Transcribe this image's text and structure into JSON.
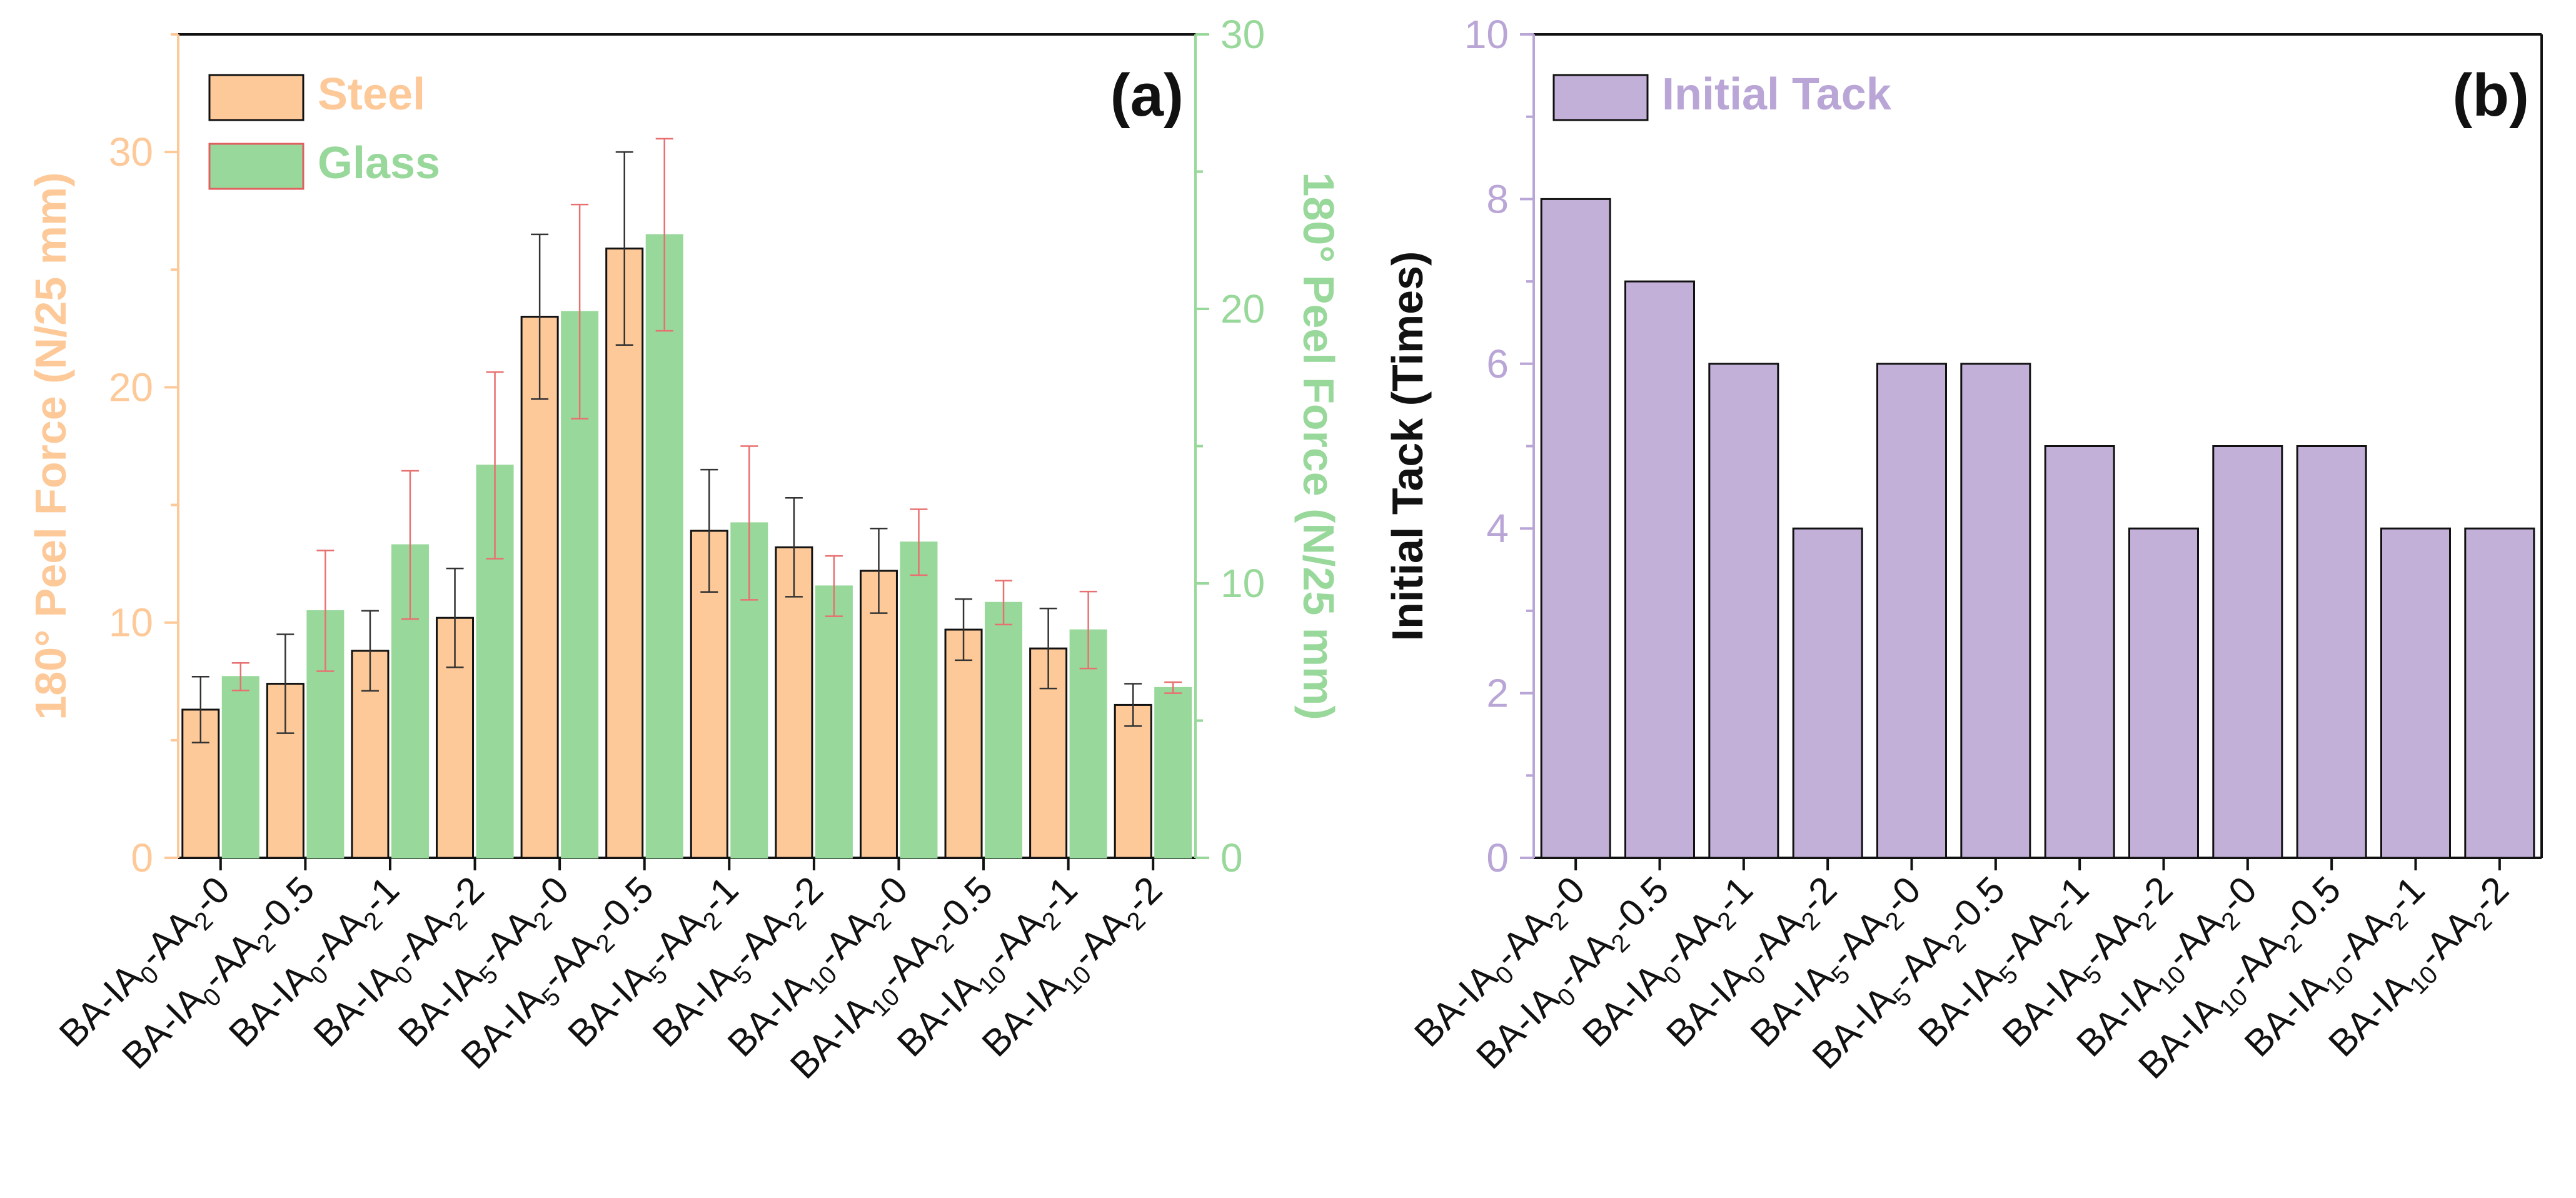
{
  "chart_data": [
    {
      "type": "bar",
      "panel_label": "(a)",
      "categories": [
        [
          "BA-IA",
          "0",
          "-AA",
          "2",
          "-0"
        ],
        [
          "BA-IA",
          "0",
          "-AA",
          "2",
          "-0.5"
        ],
        [
          "BA-IA",
          "0",
          "-AA",
          "2",
          "-1"
        ],
        [
          "BA-IA",
          "0",
          "-AA",
          "2",
          "-2"
        ],
        [
          "BA-IA",
          "5",
          "-AA",
          "2",
          "-0"
        ],
        [
          "BA-IA",
          "5",
          "-AA",
          "2",
          "-0.5"
        ],
        [
          "BA-IA",
          "5",
          "-AA",
          "2",
          "-1"
        ],
        [
          "BA-IA",
          "5",
          "-AA",
          "2",
          "-2"
        ],
        [
          "BA-IA",
          "10",
          "-AA",
          "2",
          "-0"
        ],
        [
          "BA-IA",
          "10",
          "-AA",
          "2",
          "-0.5"
        ],
        [
          "BA-IA",
          "10",
          "-AA",
          "2",
          "-1"
        ],
        [
          "BA-IA",
          "10",
          "-AA",
          "2",
          "-2"
        ]
      ],
      "ylabel_left": "180° Peel Force (N/25 mm)",
      "ylabel_right": "180° Peel Force (N/25 mm)",
      "ylim_left": [
        0,
        35
      ],
      "ylim_right": [
        0,
        30
      ],
      "yticks_left": [
        "0",
        "10",
        "20",
        "30"
      ],
      "yticks_right": [
        "0",
        "10",
        "20",
        "30"
      ],
      "legend_position": "top-left",
      "grid": false,
      "series": [
        {
          "name": "Steel",
          "axis": "left",
          "color": "#FDC999",
          "values": [
            6.3,
            7.4,
            8.8,
            10.2,
            23.0,
            25.9,
            13.9,
            13.2,
            12.2,
            9.7,
            8.9,
            6.5
          ],
          "errors": [
            1.4,
            2.1,
            1.7,
            2.1,
            3.5,
            4.1,
            2.6,
            2.1,
            1.8,
            1.3,
            1.7,
            0.9
          ]
        },
        {
          "name": "Glass",
          "axis": "right",
          "color": "#98D89A",
          "values": [
            6.6,
            9.0,
            11.4,
            14.3,
            19.9,
            22.7,
            12.2,
            9.9,
            11.5,
            9.3,
            8.3,
            6.2
          ],
          "errors": [
            0.5,
            2.2,
            2.7,
            3.4,
            3.9,
            3.5,
            2.8,
            1.1,
            1.2,
            0.8,
            1.4,
            0.2
          ]
        }
      ],
      "colors": {
        "left_axis": "#FDC999",
        "right_axis": "#98D89A",
        "error_steel": "#333333",
        "error_glass": "#E87070"
      }
    },
    {
      "type": "bar",
      "panel_label": "(b)",
      "categories": [
        [
          "BA-IA",
          "0",
          "-AA",
          "2",
          "-0"
        ],
        [
          "BA-IA",
          "0",
          "-AA",
          "2",
          "-0.5"
        ],
        [
          "BA-IA",
          "0",
          "-AA",
          "2",
          "-1"
        ],
        [
          "BA-IA",
          "0",
          "-AA",
          "2",
          "-2"
        ],
        [
          "BA-IA",
          "5",
          "-AA",
          "2",
          "-0"
        ],
        [
          "BA-IA",
          "5",
          "-AA",
          "2",
          "-0.5"
        ],
        [
          "BA-IA",
          "5",
          "-AA",
          "2",
          "-1"
        ],
        [
          "BA-IA",
          "5",
          "-AA",
          "2",
          "-2"
        ],
        [
          "BA-IA",
          "10",
          "-AA",
          "2",
          "-0"
        ],
        [
          "BA-IA",
          "10",
          "-AA",
          "2",
          "-0.5"
        ],
        [
          "BA-IA",
          "10",
          "-AA",
          "2",
          "-1"
        ],
        [
          "BA-IA",
          "10",
          "-AA",
          "2",
          "-2"
        ]
      ],
      "ylabel": "Initial Tack (Times)",
      "ylim": [
        0,
        10
      ],
      "yticks": [
        "0",
        "2",
        "4",
        "6",
        "8",
        "10"
      ],
      "legend_position": "top-left",
      "grid": false,
      "series": [
        {
          "name": "Initial Tack",
          "color": "#C2B0D8",
          "values": [
            8,
            7,
            6,
            4,
            6,
            6,
            5,
            4,
            5,
            5,
            4,
            4
          ]
        }
      ],
      "colors": {
        "axis": "#B9A6D6"
      }
    }
  ]
}
